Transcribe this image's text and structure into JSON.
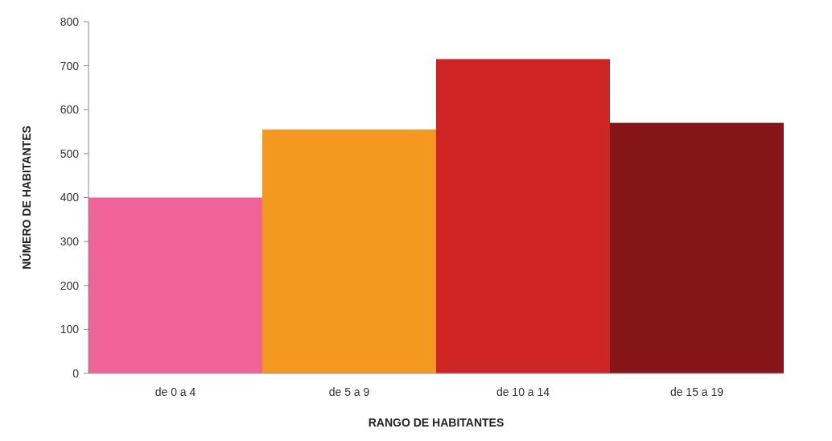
{
  "chart_data": {
    "type": "bar",
    "xlabel": "RANGO DE HABITANTES",
    "ylabel": "NÚMERO DE HABITANTES",
    "categories": [
      "de 0 a 4",
      "de 5 a 9",
      "de 10 a 14",
      "de 15 a 19"
    ],
    "values": [
      400,
      555,
      715,
      570
    ],
    "colors": [
      "#ef6399",
      "#f5981f",
      "#cf2424",
      "#861517"
    ],
    "ylim": [
      0,
      800
    ],
    "yticks": [
      0,
      100,
      200,
      300,
      400,
      500,
      600,
      700,
      800
    ]
  }
}
